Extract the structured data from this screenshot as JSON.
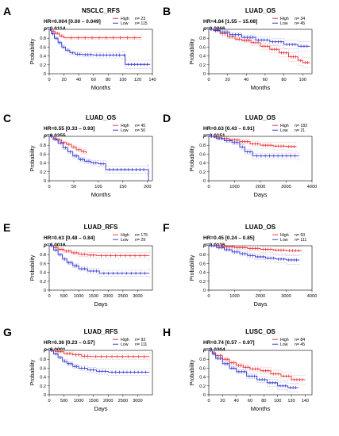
{
  "colors": {
    "high": "#e8262b",
    "low": "#2b31c9",
    "high_ci": "#f3a3a5",
    "low_ci": "#a3a6ea"
  },
  "chart_data": [
    {
      "panel": "A",
      "type": "line",
      "title": "NSCLC_RFS",
      "hr": "HR=0.004 [0.00 – 0.049]",
      "p": "p=0.0114",
      "xlabel": "Months",
      "ylabel": "Probability",
      "xlim": [
        0,
        140
      ],
      "xticks": [
        0,
        20,
        40,
        60,
        80,
        100,
        120,
        140
      ],
      "ylim": [
        0,
        1
      ],
      "yticks": [
        0,
        0.2,
        0.4,
        0.6,
        0.8
      ],
      "series": [
        {
          "name": "High",
          "n": 23,
          "legend": "n= 23",
          "points": [
            [
              0,
              1
            ],
            [
              3,
              0.95
            ],
            [
              8,
              0.91
            ],
            [
              14,
              0.85
            ],
            [
              20,
              0.81
            ],
            [
              125,
              0.81
            ]
          ]
        },
        {
          "name": "Low",
          "n": 115,
          "legend": "n= 115",
          "points": [
            [
              0,
              1
            ],
            [
              3,
              0.9
            ],
            [
              7,
              0.8
            ],
            [
              12,
              0.7
            ],
            [
              17,
              0.6
            ],
            [
              22,
              0.53
            ],
            [
              28,
              0.47
            ],
            [
              35,
              0.44
            ],
            [
              45,
              0.43
            ],
            [
              60,
              0.42
            ],
            [
              100,
              0.42
            ],
            [
              103,
              0.21
            ],
            [
              137,
              0.21
            ]
          ]
        }
      ]
    },
    {
      "panel": "B",
      "type": "line",
      "title": "LUAD_OS",
      "hr": "HR=4.84 [1.55 – 15.08]",
      "p": "p=0.0066",
      "xlabel": "Months",
      "ylabel": "Probability",
      "xlim": [
        0,
        110
      ],
      "xticks": [
        0,
        20,
        40,
        60,
        80,
        100
      ],
      "ylim": [
        0,
        1
      ],
      "yticks": [
        0,
        0.2,
        0.4,
        0.6,
        0.8
      ],
      "series": [
        {
          "name": "High",
          "n": 34,
          "legend": "n= 34",
          "points": [
            [
              0,
              1
            ],
            [
              5,
              0.97
            ],
            [
              12,
              0.9
            ],
            [
              20,
              0.83
            ],
            [
              28,
              0.78
            ],
            [
              35,
              0.75
            ],
            [
              45,
              0.7
            ],
            [
              55,
              0.62
            ],
            [
              65,
              0.55
            ],
            [
              75,
              0.47
            ],
            [
              85,
              0.38
            ],
            [
              95,
              0.3
            ],
            [
              100,
              0.25
            ],
            [
              108,
              0.25
            ]
          ]
        },
        {
          "name": "Low",
          "n": 45,
          "legend": "n= 45",
          "points": [
            [
              0,
              1
            ],
            [
              5,
              0.98
            ],
            [
              12,
              0.94
            ],
            [
              22,
              0.88
            ],
            [
              35,
              0.82
            ],
            [
              50,
              0.76
            ],
            [
              65,
              0.72
            ],
            [
              80,
              0.66
            ],
            [
              95,
              0.62
            ],
            [
              108,
              0.62
            ]
          ]
        }
      ]
    },
    {
      "panel": "C",
      "type": "line",
      "title": "LUAD_OS",
      "hr": "HR=0.55 [0.33 – 0.93]",
      "p": "p=0.0255",
      "xlabel": "Months",
      "ylabel": "Probability",
      "xlim": [
        0,
        210
      ],
      "xticks": [
        0,
        50,
        100,
        150,
        200
      ],
      "ylim": [
        0,
        1
      ],
      "yticks": [
        0,
        0.2,
        0.4,
        0.6,
        0.8
      ],
      "series": [
        {
          "name": "High",
          "n": 45,
          "legend": "n= 45",
          "points": [
            [
              0,
              1
            ],
            [
              8,
              0.96
            ],
            [
              15,
              0.92
            ],
            [
              25,
              0.86
            ],
            [
              35,
              0.82
            ],
            [
              45,
              0.76
            ],
            [
              55,
              0.7
            ],
            [
              65,
              0.66
            ],
            [
              75,
              0.62
            ]
          ]
        },
        {
          "name": "Low",
          "n": 50,
          "legend": "n= 50",
          "points": [
            [
              0,
              1
            ],
            [
              8,
              0.93
            ],
            [
              18,
              0.85
            ],
            [
              28,
              0.74
            ],
            [
              38,
              0.65
            ],
            [
              48,
              0.56
            ],
            [
              60,
              0.48
            ],
            [
              72,
              0.44
            ],
            [
              85,
              0.4
            ],
            [
              100,
              0.38
            ],
            [
              115,
              0.25
            ],
            [
              200,
              0.25
            ],
            [
              202,
              0
            ]
          ]
        }
      ]
    },
    {
      "panel": "D",
      "type": "line",
      "title": "LUAD_OS",
      "hr": "HR=0.63 [0.43 – 0.91]",
      "p": "p=0.0151",
      "xlabel": "Days",
      "ylabel": "Probability",
      "xlim": [
        0,
        4000
      ],
      "xticks": [
        0,
        1000,
        2000,
        3000,
        4000
      ],
      "ylim": [
        0,
        1
      ],
      "yticks": [
        0,
        0.2,
        0.4,
        0.6,
        0.8
      ],
      "series": [
        {
          "name": "High",
          "n": 183,
          "legend": "n= 183",
          "points": [
            [
              0,
              1
            ],
            [
              200,
              0.98
            ],
            [
              500,
              0.95
            ],
            [
              800,
              0.92
            ],
            [
              1200,
              0.88
            ],
            [
              1600,
              0.83
            ],
            [
              2000,
              0.8
            ],
            [
              2500,
              0.78
            ],
            [
              3000,
              0.77
            ],
            [
              3400,
              0.77
            ]
          ]
        },
        {
          "name": "Low",
          "n": 21,
          "legend": "n= 21",
          "points": [
            [
              0,
              1
            ],
            [
              300,
              0.95
            ],
            [
              600,
              0.9
            ],
            [
              900,
              0.86
            ],
            [
              1200,
              0.76
            ],
            [
              1400,
              0.65
            ],
            [
              1700,
              0.56
            ],
            [
              3500,
              0.56
            ]
          ]
        }
      ]
    },
    {
      "panel": "E",
      "type": "line",
      "title": "LUAD_RFS",
      "hr": "HR=0.63 [0.48 – 0.84]",
      "p": "p=0.0016",
      "xlabel": "Days",
      "ylabel": "Probability",
      "xlim": [
        0,
        3500
      ],
      "xticks": [
        0,
        500,
        1000,
        1500,
        2000,
        2500,
        3000
      ],
      "ylim": [
        0,
        1
      ],
      "yticks": [
        0,
        0.2,
        0.4,
        0.6,
        0.8
      ],
      "series": [
        {
          "name": "High",
          "n": 175,
          "legend": "n= 175",
          "points": [
            [
              0,
              1
            ],
            [
              150,
              0.96
            ],
            [
              300,
              0.92
            ],
            [
              500,
              0.88
            ],
            [
              750,
              0.84
            ],
            [
              1000,
              0.81
            ],
            [
              1300,
              0.79
            ],
            [
              1600,
              0.78
            ],
            [
              3400,
              0.78
            ]
          ]
        },
        {
          "name": "Low",
          "n": 29,
          "legend": "n= 29",
          "points": [
            [
              0,
              1
            ],
            [
              150,
              0.9
            ],
            [
              300,
              0.8
            ],
            [
              450,
              0.7
            ],
            [
              600,
              0.62
            ],
            [
              800,
              0.55
            ],
            [
              1000,
              0.48
            ],
            [
              1300,
              0.43
            ],
            [
              1700,
              0.38
            ],
            [
              3400,
              0.38
            ]
          ]
        }
      ]
    },
    {
      "panel": "F",
      "type": "line",
      "title": "LUAD_OS",
      "hr": "HR=0.45 [0.24 – 0.85]",
      "p": "p=0.0136",
      "xlabel": "Days",
      "ylabel": "Probability",
      "xlim": [
        0,
        4000
      ],
      "xticks": [
        0,
        1000,
        2000,
        3000,
        4000
      ],
      "ylim": [
        0,
        1
      ],
      "yticks": [
        0,
        0.2,
        0.4,
        0.6,
        0.8
      ],
      "series": [
        {
          "name": "High",
          "n": 93,
          "legend": "n= 93",
          "points": [
            [
              0,
              1
            ],
            [
              500,
              0.98
            ],
            [
              1000,
              0.96
            ],
            [
              1500,
              0.94
            ],
            [
              2000,
              0.92
            ],
            [
              2500,
              0.9
            ],
            [
              3000,
              0.89
            ],
            [
              3600,
              0.89
            ]
          ]
        },
        {
          "name": "Low",
          "n": 111,
          "legend": "n= 111",
          "points": [
            [
              0,
              1
            ],
            [
              300,
              0.96
            ],
            [
              600,
              0.91
            ],
            [
              900,
              0.86
            ],
            [
              1200,
              0.82
            ],
            [
              1500,
              0.78
            ],
            [
              1800,
              0.75
            ],
            [
              2200,
              0.72
            ],
            [
              2600,
              0.7
            ],
            [
              3000,
              0.68
            ],
            [
              3500,
              0.67
            ]
          ]
        }
      ]
    },
    {
      "panel": "G",
      "type": "line",
      "title": "LUAD_RFS",
      "hr": "HR=0.36 [0.23 – 0.57]",
      "p": "p<0.0001",
      "xlabel": "Days",
      "ylabel": "Probability",
      "xlim": [
        0,
        3500
      ],
      "xticks": [
        0,
        500,
        1000,
        1500,
        2000,
        2500,
        3000
      ],
      "ylim": [
        0,
        1
      ],
      "yticks": [
        0,
        0.2,
        0.4,
        0.6,
        0.8
      ],
      "series": [
        {
          "name": "High",
          "n": 93,
          "legend": "n= 93",
          "points": [
            [
              0,
              1
            ],
            [
              200,
              0.97
            ],
            [
              500,
              0.93
            ],
            [
              800,
              0.9
            ],
            [
              1100,
              0.87
            ],
            [
              1400,
              0.86
            ],
            [
              3400,
              0.86
            ]
          ]
        },
        {
          "name": "Low",
          "n": 111,
          "legend": "n= 111",
          "points": [
            [
              0,
              1
            ],
            [
              150,
              0.92
            ],
            [
              300,
              0.84
            ],
            [
              450,
              0.76
            ],
            [
              600,
              0.7
            ],
            [
              800,
              0.64
            ],
            [
              1000,
              0.6
            ],
            [
              1300,
              0.56
            ],
            [
              1600,
              0.53
            ],
            [
              2000,
              0.51
            ],
            [
              3400,
              0.51
            ]
          ]
        }
      ]
    },
    {
      "panel": "H",
      "type": "line",
      "title": "LUSC_OS",
      "hr": "HR=0.74 [0.57 – 0.97]",
      "p": "p=0.0304",
      "xlabel": "Months",
      "ylabel": "Probability",
      "xlim": [
        0,
        150
      ],
      "xticks": [
        0,
        20,
        40,
        60,
        80,
        100,
        120,
        140
      ],
      "ylim": [
        0,
        1
      ],
      "yticks": [
        0,
        0.2,
        0.4,
        0.6,
        0.8
      ],
      "series": [
        {
          "name": "High",
          "n": 84,
          "legend": "n= 84",
          "points": [
            [
              0,
              1
            ],
            [
              5,
              0.95
            ],
            [
              10,
              0.88
            ],
            [
              20,
              0.8
            ],
            [
              30,
              0.72
            ],
            [
              40,
              0.66
            ],
            [
              50,
              0.62
            ],
            [
              60,
              0.58
            ],
            [
              75,
              0.54
            ],
            [
              90,
              0.47
            ],
            [
              105,
              0.42
            ],
            [
              120,
              0.34
            ],
            [
              140,
              0.34
            ]
          ]
        },
        {
          "name": "Low",
          "n": 45,
          "legend": "n= 45",
          "points": [
            [
              0,
              1
            ],
            [
              5,
              0.92
            ],
            [
              10,
              0.82
            ],
            [
              20,
              0.7
            ],
            [
              30,
              0.6
            ],
            [
              40,
              0.52
            ],
            [
              55,
              0.42
            ],
            [
              70,
              0.34
            ],
            [
              85,
              0.27
            ],
            [
              100,
              0.2
            ],
            [
              115,
              0.16
            ],
            [
              130,
              0.16
            ]
          ]
        }
      ]
    }
  ]
}
